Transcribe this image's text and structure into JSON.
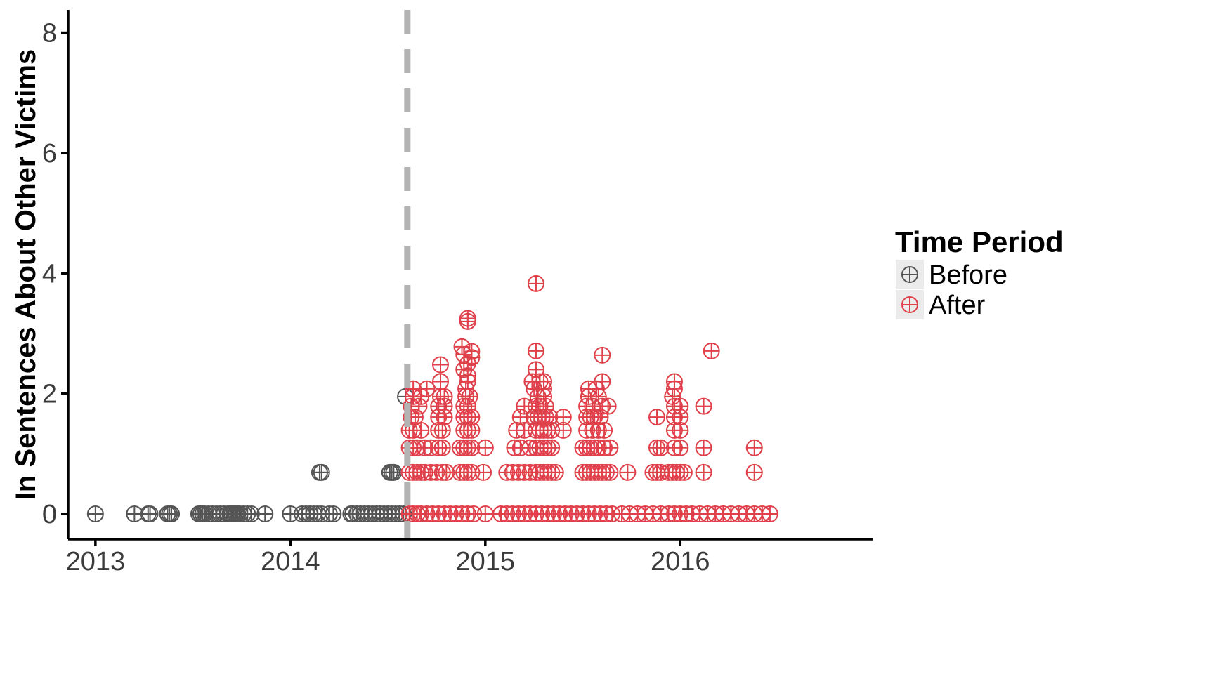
{
  "chart_data": {
    "type": "scatter",
    "title": "",
    "xlabel": "",
    "ylabel": "In Sentences About Other Victims",
    "x_ticks": [
      "2013",
      "2014",
      "2015",
      "2016"
    ],
    "y_ticks": [
      "0",
      "2",
      "4",
      "6",
      "8"
    ],
    "xlim": [
      2012.86,
      2016.99
    ],
    "ylim": [
      -0.42,
      8.38
    ],
    "marker": "circle-plus",
    "grid": false,
    "event_line": {
      "x": 2014.6,
      "style": "dashed",
      "color": "#b3b3b3"
    },
    "legend": {
      "title": "Time Period",
      "position": "right"
    },
    "series": [
      {
        "name": "Before",
        "color": "#555555",
        "points": [
          [
            2013.0,
            0
          ],
          [
            2013.2,
            0
          ],
          [
            2013.27,
            0
          ],
          [
            2013.28,
            0
          ],
          [
            2013.37,
            0
          ],
          [
            2013.38,
            0
          ],
          [
            2013.39,
            0
          ],
          [
            2013.53,
            0
          ],
          [
            2013.54,
            0
          ],
          [
            2013.55,
            0
          ],
          [
            2013.56,
            0
          ],
          [
            2013.58,
            0
          ],
          [
            2013.6,
            0
          ],
          [
            2013.62,
            0
          ],
          [
            2013.64,
            0
          ],
          [
            2013.66,
            0
          ],
          [
            2013.68,
            0
          ],
          [
            2013.69,
            0
          ],
          [
            2013.7,
            0
          ],
          [
            2013.71,
            0
          ],
          [
            2013.72,
            0
          ],
          [
            2013.73,
            0
          ],
          [
            2013.74,
            0
          ],
          [
            2013.76,
            0
          ],
          [
            2013.78,
            0
          ],
          [
            2013.8,
            0
          ],
          [
            2013.87,
            0
          ],
          [
            2014.0,
            0
          ],
          [
            2014.06,
            0
          ],
          [
            2014.08,
            0
          ],
          [
            2014.1,
            0
          ],
          [
            2014.12,
            0
          ],
          [
            2014.14,
            0
          ],
          [
            2014.16,
            0
          ],
          [
            2014.2,
            0
          ],
          [
            2014.22,
            0
          ],
          [
            2014.15,
            0.69
          ],
          [
            2014.16,
            0.69
          ],
          [
            2014.31,
            0
          ],
          [
            2014.32,
            0
          ],
          [
            2014.34,
            0
          ],
          [
            2014.36,
            0
          ],
          [
            2014.38,
            0
          ],
          [
            2014.4,
            0
          ],
          [
            2014.42,
            0
          ],
          [
            2014.44,
            0
          ],
          [
            2014.46,
            0
          ],
          [
            2014.48,
            0
          ],
          [
            2014.5,
            0
          ],
          [
            2014.52,
            0
          ],
          [
            2014.54,
            0
          ],
          [
            2014.56,
            0
          ],
          [
            2014.58,
            0
          ],
          [
            2014.51,
            0.69
          ],
          [
            2014.52,
            0.69
          ],
          [
            2014.53,
            0.69
          ],
          [
            2014.59,
            1.95
          ]
        ]
      },
      {
        "name": "After",
        "color": "#e0404a",
        "points": [
          [
            2014.61,
            0
          ],
          [
            2014.63,
            0
          ],
          [
            2014.65,
            0
          ],
          [
            2014.67,
            0
          ],
          [
            2014.7,
            0
          ],
          [
            2014.73,
            0
          ],
          [
            2014.76,
            0
          ],
          [
            2014.79,
            0
          ],
          [
            2014.82,
            0
          ],
          [
            2014.85,
            0
          ],
          [
            2014.88,
            0
          ],
          [
            2014.91,
            0
          ],
          [
            2014.94,
            0
          ],
          [
            2015.0,
            0
          ],
          [
            2015.08,
            0
          ],
          [
            2015.11,
            0
          ],
          [
            2015.14,
            0
          ],
          [
            2015.17,
            0
          ],
          [
            2015.2,
            0
          ],
          [
            2015.23,
            0
          ],
          [
            2015.26,
            0
          ],
          [
            2015.29,
            0
          ],
          [
            2015.32,
            0
          ],
          [
            2015.35,
            0
          ],
          [
            2015.38,
            0
          ],
          [
            2015.41,
            0
          ],
          [
            2015.44,
            0
          ],
          [
            2015.47,
            0
          ],
          [
            2015.5,
            0
          ],
          [
            2015.53,
            0
          ],
          [
            2015.56,
            0
          ],
          [
            2015.59,
            0
          ],
          [
            2015.62,
            0
          ],
          [
            2015.65,
            0
          ],
          [
            2015.7,
            0
          ],
          [
            2015.74,
            0
          ],
          [
            2015.78,
            0
          ],
          [
            2015.82,
            0
          ],
          [
            2015.86,
            0
          ],
          [
            2015.9,
            0
          ],
          [
            2015.94,
            0
          ],
          [
            2015.97,
            0
          ],
          [
            2016.0,
            0
          ],
          [
            2016.03,
            0
          ],
          [
            2016.06,
            0
          ],
          [
            2016.1,
            0
          ],
          [
            2016.14,
            0
          ],
          [
            2016.18,
            0
          ],
          [
            2016.22,
            0
          ],
          [
            2016.26,
            0
          ],
          [
            2016.3,
            0
          ],
          [
            2016.34,
            0
          ],
          [
            2016.38,
            0
          ],
          [
            2016.42,
            0
          ],
          [
            2016.46,
            0
          ],
          [
            2014.61,
            0.69
          ],
          [
            2014.63,
            0.69
          ],
          [
            2014.65,
            0.69
          ],
          [
            2014.67,
            0.69
          ],
          [
            2014.69,
            0.69
          ],
          [
            2014.72,
            0.69
          ],
          [
            2014.75,
            0.69
          ],
          [
            2014.78,
            0.69
          ],
          [
            2014.8,
            0.69
          ],
          [
            2014.87,
            0.69
          ],
          [
            2014.89,
            0.69
          ],
          [
            2014.91,
            0.69
          ],
          [
            2014.93,
            0.69
          ],
          [
            2014.99,
            0.69
          ],
          [
            2015.11,
            0.69
          ],
          [
            2015.14,
            0.69
          ],
          [
            2015.17,
            0.69
          ],
          [
            2015.2,
            0.69
          ],
          [
            2015.23,
            0.69
          ],
          [
            2015.26,
            0.69
          ],
          [
            2015.28,
            0.69
          ],
          [
            2015.3,
            0.69
          ],
          [
            2015.32,
            0.69
          ],
          [
            2015.34,
            0.69
          ],
          [
            2015.36,
            0.69
          ],
          [
            2015.5,
            0.69
          ],
          [
            2015.52,
            0.69
          ],
          [
            2015.54,
            0.69
          ],
          [
            2015.56,
            0.69
          ],
          [
            2015.58,
            0.69
          ],
          [
            2015.6,
            0.69
          ],
          [
            2015.62,
            0.69
          ],
          [
            2015.64,
            0.69
          ],
          [
            2015.73,
            0.69
          ],
          [
            2015.86,
            0.69
          ],
          [
            2015.88,
            0.69
          ],
          [
            2015.9,
            0.69
          ],
          [
            2015.94,
            0.69
          ],
          [
            2015.96,
            0.69
          ],
          [
            2015.98,
            0.69
          ],
          [
            2016.0,
            0.69
          ],
          [
            2016.02,
            0.69
          ],
          [
            2016.12,
            0.69
          ],
          [
            2016.38,
            0.69
          ],
          [
            2014.61,
            1.1
          ],
          [
            2014.63,
            1.1
          ],
          [
            2014.65,
            1.1
          ],
          [
            2014.69,
            1.1
          ],
          [
            2014.72,
            1.1
          ],
          [
            2014.76,
            1.1
          ],
          [
            2014.78,
            1.1
          ],
          [
            2014.87,
            1.1
          ],
          [
            2014.89,
            1.1
          ],
          [
            2014.91,
            1.1
          ],
          [
            2014.93,
            1.1
          ],
          [
            2015.0,
            1.1
          ],
          [
            2015.15,
            1.1
          ],
          [
            2015.18,
            1.1
          ],
          [
            2015.23,
            1.1
          ],
          [
            2015.26,
            1.1
          ],
          [
            2015.28,
            1.1
          ],
          [
            2015.3,
            1.1
          ],
          [
            2015.32,
            1.1
          ],
          [
            2015.34,
            1.1
          ],
          [
            2015.5,
            1.1
          ],
          [
            2015.52,
            1.1
          ],
          [
            2015.54,
            1.1
          ],
          [
            2015.56,
            1.1
          ],
          [
            2015.58,
            1.1
          ],
          [
            2015.61,
            1.1
          ],
          [
            2015.64,
            1.1
          ],
          [
            2015.88,
            1.1
          ],
          [
            2015.9,
            1.1
          ],
          [
            2015.97,
            1.1
          ],
          [
            2016.0,
            1.1
          ],
          [
            2016.12,
            1.1
          ],
          [
            2016.38,
            1.1
          ],
          [
            2014.61,
            1.39
          ],
          [
            2014.63,
            1.39
          ],
          [
            2014.67,
            1.39
          ],
          [
            2014.76,
            1.39
          ],
          [
            2014.78,
            1.39
          ],
          [
            2014.89,
            1.39
          ],
          [
            2014.91,
            1.39
          ],
          [
            2014.93,
            1.39
          ],
          [
            2015.16,
            1.39
          ],
          [
            2015.2,
            1.39
          ],
          [
            2015.26,
            1.39
          ],
          [
            2015.28,
            1.39
          ],
          [
            2015.3,
            1.39
          ],
          [
            2015.32,
            1.39
          ],
          [
            2015.34,
            1.39
          ],
          [
            2015.4,
            1.39
          ],
          [
            2015.52,
            1.39
          ],
          [
            2015.55,
            1.39
          ],
          [
            2015.58,
            1.39
          ],
          [
            2015.61,
            1.39
          ],
          [
            2015.97,
            1.39
          ],
          [
            2016.0,
            1.39
          ],
          [
            2014.62,
            1.61
          ],
          [
            2014.64,
            1.61
          ],
          [
            2014.76,
            1.61
          ],
          [
            2014.79,
            1.61
          ],
          [
            2014.89,
            1.61
          ],
          [
            2014.91,
            1.61
          ],
          [
            2014.93,
            1.61
          ],
          [
            2015.18,
            1.61
          ],
          [
            2015.25,
            1.61
          ],
          [
            2015.27,
            1.61
          ],
          [
            2015.29,
            1.61
          ],
          [
            2015.31,
            1.61
          ],
          [
            2015.33,
            1.61
          ],
          [
            2015.4,
            1.61
          ],
          [
            2015.52,
            1.61
          ],
          [
            2015.54,
            1.61
          ],
          [
            2015.56,
            1.61
          ],
          [
            2015.59,
            1.61
          ],
          [
            2015.88,
            1.61
          ],
          [
            2015.97,
            1.61
          ],
          [
            2016.0,
            1.61
          ],
          [
            2014.62,
            1.79
          ],
          [
            2014.66,
            1.79
          ],
          [
            2014.76,
            1.79
          ],
          [
            2014.79,
            1.79
          ],
          [
            2014.89,
            1.79
          ],
          [
            2014.91,
            1.79
          ],
          [
            2015.2,
            1.79
          ],
          [
            2015.26,
            1.79
          ],
          [
            2015.28,
            1.79
          ],
          [
            2015.31,
            1.79
          ],
          [
            2015.52,
            1.79
          ],
          [
            2015.55,
            1.79
          ],
          [
            2015.6,
            1.79
          ],
          [
            2015.63,
            1.79
          ],
          [
            2015.97,
            1.79
          ],
          [
            2016.0,
            1.79
          ],
          [
            2016.12,
            1.79
          ],
          [
            2014.63,
            1.95
          ],
          [
            2014.67,
            1.95
          ],
          [
            2014.77,
            1.95
          ],
          [
            2014.79,
            1.95
          ],
          [
            2014.9,
            1.95
          ],
          [
            2014.92,
            1.95
          ],
          [
            2015.27,
            1.95
          ],
          [
            2015.3,
            1.95
          ],
          [
            2015.53,
            1.95
          ],
          [
            2015.58,
            1.95
          ],
          [
            2015.96,
            1.95
          ],
          [
            2014.63,
            2.08
          ],
          [
            2014.7,
            2.08
          ],
          [
            2014.9,
            2.08
          ],
          [
            2015.25,
            2.08
          ],
          [
            2015.3,
            2.08
          ],
          [
            2015.53,
            2.08
          ],
          [
            2015.57,
            2.08
          ],
          [
            2015.97,
            2.08
          ],
          [
            2014.77,
            2.2
          ],
          [
            2014.91,
            2.2
          ],
          [
            2015.24,
            2.2
          ],
          [
            2015.28,
            2.2
          ],
          [
            2015.3,
            2.2
          ],
          [
            2015.6,
            2.2
          ],
          [
            2015.97,
            2.2
          ],
          [
            2014.91,
            2.3
          ],
          [
            2014.89,
            2.4
          ],
          [
            2015.26,
            2.4
          ],
          [
            2014.77,
            2.48
          ],
          [
            2014.91,
            2.5
          ],
          [
            2014.93,
            2.6
          ],
          [
            2015.6,
            2.64
          ],
          [
            2014.89,
            2.65
          ],
          [
            2014.93,
            2.7
          ],
          [
            2015.26,
            2.71
          ],
          [
            2016.16,
            2.71
          ],
          [
            2014.88,
            2.78
          ],
          [
            2014.91,
            3.2
          ],
          [
            2014.91,
            3.25
          ],
          [
            2015.26,
            3.83
          ]
        ]
      }
    ]
  }
}
